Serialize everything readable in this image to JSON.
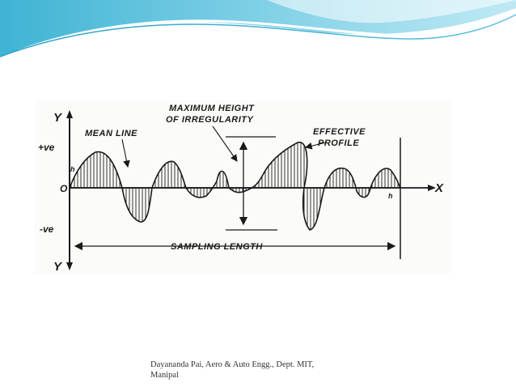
{
  "slide": {
    "footer_line1": "Dayananda Pai, Aero & Auto Engg., Dept. MIT,",
    "footer_line2": "Manipal"
  },
  "diagram": {
    "axis_y_top": "Y",
    "axis_y_bottom": "Y",
    "axis_x": "X",
    "origin": "O",
    "positive_label": "+ve",
    "negative_label": "-ve",
    "mean_line_label": "MEAN LINE",
    "max_height_label_line1": "MAXIMUM HEIGHT",
    "max_height_label_line2": "OF IRREGULARITY",
    "effective_profile_line1": "EFFECTIVE",
    "effective_profile_line2": "PROFILE",
    "sampling_length_label": "SAMPLING LENGTH",
    "h1_label": "h",
    "hn_label": "h",
    "colors": {
      "banner_dark": "#2aa5c9",
      "banner_light": "#9fe0ef",
      "ink": "#1a1a1a"
    }
  }
}
